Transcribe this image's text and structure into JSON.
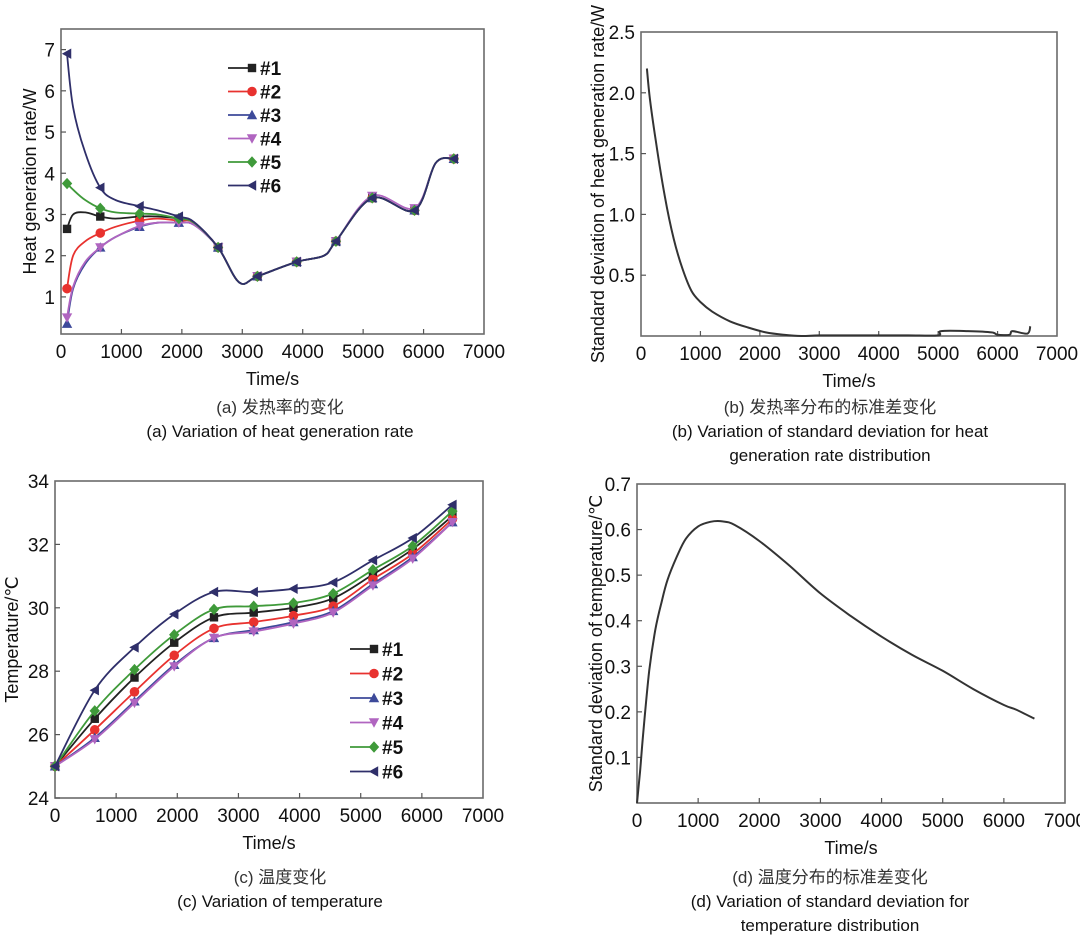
{
  "chart_data": [
    {
      "id": "a",
      "type": "line",
      "title": "",
      "xlabel": "Time/s",
      "ylabel": "Heat generation rate/W",
      "xlim": [
        0,
        7000
      ],
      "ylim": [
        0.1,
        7.5
      ],
      "xticks": [
        0,
        1000,
        2000,
        3000,
        4000,
        5000,
        6000,
        7000
      ],
      "yticks": [
        1,
        2,
        3,
        4,
        5,
        6,
        7
      ],
      "grid": false,
      "legend": "top-center",
      "caption_zh": "(a) 发热率的变化",
      "caption_en": [
        "(a) Variation of heat generation rate"
      ],
      "series": [
        {
          "name": "#1",
          "color": "#222222",
          "marker": "square",
          "x": [
            100,
            200,
            400,
            650,
            900,
            1300,
            1600,
            1950,
            2200,
            2600,
            2950,
            3250,
            3900,
            4350,
            4550,
            5150,
            5850,
            6200,
            6500
          ],
          "y": [
            2.65,
            3.0,
            3.05,
            2.95,
            2.9,
            2.95,
            2.95,
            2.9,
            2.8,
            2.2,
            1.35,
            1.5,
            1.85,
            2.0,
            2.35,
            3.4,
            3.1,
            4.25,
            4.35
          ]
        },
        {
          "name": "#2",
          "color": "#e8322f",
          "marker": "circle",
          "x": [
            100,
            200,
            400,
            650,
            900,
            1300,
            1600,
            1950,
            2200,
            2600,
            2950,
            3250,
            3900,
            4350,
            4550,
            5150,
            5850,
            6200,
            6500
          ],
          "y": [
            1.2,
            2.0,
            2.35,
            2.55,
            2.7,
            2.85,
            2.9,
            2.85,
            2.8,
            2.2,
            1.35,
            1.5,
            1.85,
            2.0,
            2.35,
            3.4,
            3.1,
            4.25,
            4.35
          ]
        },
        {
          "name": "#3",
          "color": "#3d4a9a",
          "marker": "triangle-up",
          "x": [
            100,
            200,
            400,
            650,
            900,
            1300,
            1600,
            1950,
            2200,
            2600,
            2950,
            3250,
            3900,
            4350,
            4550,
            5150,
            5850,
            6200,
            6500
          ],
          "y": [
            0.35,
            1.2,
            1.8,
            2.2,
            2.45,
            2.7,
            2.8,
            2.8,
            2.75,
            2.2,
            1.35,
            1.5,
            1.85,
            2.0,
            2.35,
            3.4,
            3.1,
            4.25,
            4.35
          ]
        },
        {
          "name": "#4",
          "color": "#b065c0",
          "marker": "triangle-down",
          "x": [
            100,
            200,
            400,
            650,
            900,
            1300,
            1600,
            1950,
            2200,
            2600,
            2950,
            3250,
            3900,
            4350,
            4550,
            5150,
            5850,
            6200,
            6500
          ],
          "y": [
            0.5,
            1.25,
            1.85,
            2.2,
            2.45,
            2.72,
            2.8,
            2.8,
            2.75,
            2.2,
            1.35,
            1.5,
            1.85,
            2.0,
            2.35,
            3.45,
            3.15,
            4.25,
            4.35
          ]
        },
        {
          "name": "#5",
          "color": "#3f9a3a",
          "marker": "diamond",
          "x": [
            100,
            200,
            400,
            650,
            900,
            1300,
            1600,
            1950,
            2200,
            2600,
            2950,
            3250,
            3900,
            4350,
            4550,
            5150,
            5850,
            6200,
            6500
          ],
          "y": [
            3.75,
            3.6,
            3.35,
            3.15,
            3.05,
            3.02,
            3.0,
            2.9,
            2.8,
            2.2,
            1.35,
            1.5,
            1.85,
            2.0,
            2.35,
            3.4,
            3.1,
            4.25,
            4.35
          ]
        },
        {
          "name": "#6",
          "color": "#2f2f6a",
          "marker": "triangle-left",
          "x": [
            100,
            200,
            400,
            650,
            900,
            1300,
            1600,
            1950,
            2200,
            2600,
            2950,
            3250,
            3900,
            4350,
            4550,
            5150,
            5850,
            6200,
            6500
          ],
          "y": [
            6.9,
            5.6,
            4.5,
            3.65,
            3.35,
            3.2,
            3.1,
            2.95,
            2.82,
            2.2,
            1.35,
            1.5,
            1.85,
            2.0,
            2.35,
            3.4,
            3.1,
            4.25,
            4.35
          ]
        }
      ],
      "marker_x": [
        100,
        650,
        1300,
        1950,
        2600,
        3250,
        3900,
        4550,
        5150,
        5850,
        6500
      ]
    },
    {
      "id": "b",
      "type": "line",
      "title": "",
      "xlabel": "Time/s",
      "ylabel": "Standard deviation of heat generation rate/W",
      "xlim": [
        0,
        7000
      ],
      "ylim": [
        0,
        2.5
      ],
      "xticks": [
        0,
        1000,
        2000,
        3000,
        4000,
        5000,
        6000,
        7000
      ],
      "yticks": [
        0.5,
        1.0,
        1.5,
        2.0,
        2.5
      ],
      "ytick_labels": [
        "0.5",
        "1.0",
        "1.5",
        "2.0",
        "2.5"
      ],
      "grid": false,
      "legend": "none",
      "caption_zh": "(b) 发热率分布的标准差变化",
      "caption_en": [
        "(b) Variation of standard deviation for heat",
        "generation rate distribution"
      ],
      "series": [
        {
          "name": "std",
          "color": "#333333",
          "x": [
            100,
            150,
            250,
            400,
            550,
            700,
            850,
            1000,
            1200,
            1500,
            1800,
            2100,
            2400,
            2700,
            3000,
            3500,
            4000,
            4500,
            5000,
            5050,
            5500,
            5900,
            6000,
            6200,
            6250,
            6500,
            6550
          ],
          "y": [
            2.2,
            1.95,
            1.6,
            1.15,
            0.8,
            0.55,
            0.37,
            0.28,
            0.2,
            0.12,
            0.07,
            0.03,
            0.01,
            0.0,
            0.005,
            0.005,
            0.005,
            0.005,
            0.005,
            0.04,
            0.04,
            0.03,
            0.01,
            0.01,
            0.04,
            0.02,
            0.08
          ]
        }
      ]
    },
    {
      "id": "c",
      "type": "line",
      "title": "",
      "xlabel": "Time/s",
      "ylabel": "Temperature/℃",
      "xlim": [
        0,
        7000
      ],
      "ylim": [
        24,
        34
      ],
      "xticks": [
        0,
        1000,
        2000,
        3000,
        4000,
        5000,
        6000,
        7000
      ],
      "yticks": [
        24,
        26,
        28,
        30,
        32,
        34
      ],
      "grid": false,
      "legend": "center-right",
      "caption_zh": "(c) 温度变化",
      "caption_en": [
        "(c) Variation of temperature"
      ],
      "x": [
        0,
        650,
        1300,
        1950,
        2600,
        3250,
        3900,
        4550,
        5200,
        5850,
        6500
      ],
      "series": [
        {
          "name": "#1",
          "color": "#222222",
          "marker": "square",
          "y": [
            25.0,
            26.5,
            27.8,
            28.9,
            29.7,
            29.85,
            30.0,
            30.3,
            31.05,
            31.85,
            32.9
          ]
        },
        {
          "name": "#2",
          "color": "#e8322f",
          "marker": "circle",
          "y": [
            25.0,
            26.15,
            27.35,
            28.5,
            29.35,
            29.55,
            29.75,
            30.05,
            30.9,
            31.7,
            32.8
          ]
        },
        {
          "name": "#3",
          "color": "#3d4a9a",
          "marker": "triangle-up",
          "y": [
            25.0,
            25.9,
            27.05,
            28.2,
            29.05,
            29.3,
            29.55,
            29.9,
            30.75,
            31.6,
            32.7
          ]
        },
        {
          "name": "#4",
          "color": "#b065c0",
          "marker": "triangle-down",
          "y": [
            25.0,
            25.85,
            27.0,
            28.15,
            29.05,
            29.25,
            29.5,
            29.85,
            30.7,
            31.55,
            32.7
          ]
        },
        {
          "name": "#5",
          "color": "#3f9a3a",
          "marker": "diamond",
          "y": [
            25.0,
            26.75,
            28.05,
            29.15,
            29.95,
            30.05,
            30.15,
            30.45,
            31.2,
            31.95,
            33.05
          ]
        },
        {
          "name": "#6",
          "color": "#2f2f6a",
          "marker": "triangle-left",
          "y": [
            25.0,
            27.4,
            28.75,
            29.8,
            30.5,
            30.5,
            30.6,
            30.8,
            31.5,
            32.2,
            33.25
          ]
        }
      ]
    },
    {
      "id": "d",
      "type": "line",
      "title": "",
      "xlabel": "Time/s",
      "ylabel": "Standard deviation of temperature/℃",
      "xlim": [
        0,
        7000
      ],
      "ylim": [
        0,
        0.7
      ],
      "xticks": [
        0,
        1000,
        2000,
        3000,
        4000,
        5000,
        6000,
        7000
      ],
      "yticks": [
        0.1,
        0.2,
        0.3,
        0.4,
        0.5,
        0.6,
        0.7
      ],
      "grid": false,
      "legend": "none",
      "caption_zh": "(d) 温度分布的标准差变化",
      "caption_en": [
        "(d) Variation of standard deviation for",
        "temperature distribution"
      ],
      "series": [
        {
          "name": "std",
          "color": "#333333",
          "x": [
            0,
            50,
            100,
            200,
            300,
            400,
            500,
            650,
            800,
            1000,
            1200,
            1400,
            1600,
            2000,
            2500,
            3000,
            3500,
            4000,
            4500,
            5000,
            5500,
            6000,
            6200,
            6500
          ],
          "y": [
            0.0,
            0.07,
            0.15,
            0.29,
            0.38,
            0.44,
            0.49,
            0.54,
            0.58,
            0.607,
            0.617,
            0.618,
            0.61,
            0.575,
            0.52,
            0.46,
            0.41,
            0.365,
            0.325,
            0.29,
            0.25,
            0.215,
            0.205,
            0.185
          ]
        }
      ]
    }
  ]
}
